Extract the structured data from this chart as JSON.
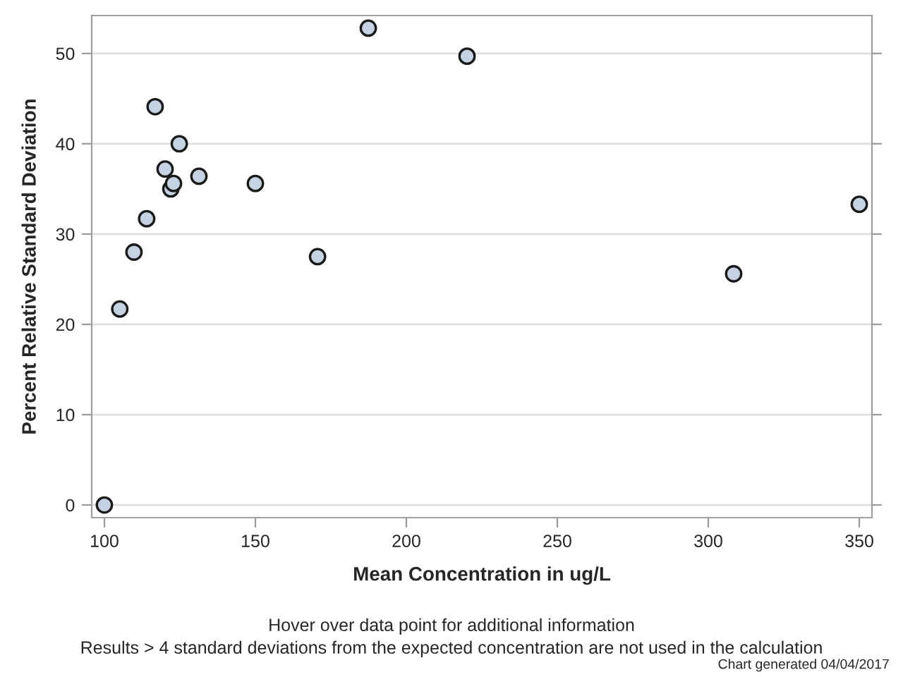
{
  "chart_data": {
    "type": "scatter",
    "xlabel": "Mean Concentration in ug/L",
    "ylabel": "Percent Relative Standard Deviation",
    "x": [
      100,
      105.1,
      109.8,
      114,
      116.8,
      120.1,
      122.9,
      122,
      124.8,
      131.3,
      150,
      170.6,
      187.4,
      220.1,
      308.4,
      350
    ],
    "values": [
      0,
      21.7,
      28,
      31.7,
      44.1,
      37.2,
      35.6,
      35,
      40,
      36.4,
      35.6,
      27.5,
      52.8,
      49.7,
      25.6,
      33.3
    ],
    "color": "#c5d2e2",
    "marker": "circle",
    "grid": "y",
    "xlim": [
      95.8,
      354.2
    ],
    "ylim": [
      -1.4,
      54.2
    ],
    "xticks": [
      100,
      150,
      200,
      250,
      300,
      350
    ],
    "yticks": [
      0,
      10,
      20,
      30,
      40,
      50
    ],
    "annotations": [
      "Hover over data point for additional information",
      "Results > 4 standard deviations from the expected concentration are not used in the calculation",
      "Chart generated 04/04/2017"
    ]
  }
}
